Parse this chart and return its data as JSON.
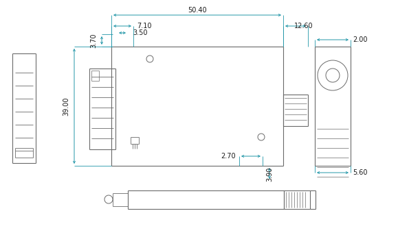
{
  "bg_color": "#ffffff",
  "line_color": "#6a6a6a",
  "dim_color": "#2196a8",
  "dim_text_color": "#1a1a1a",
  "fig_width": 5.79,
  "fig_height": 3.62,
  "dpi": 100,
  "dimensions": {
    "50.40": [
      291,
      18,
      7.5
    ],
    "7.10": [
      248,
      38,
      7.5
    ],
    "3.50": [
      252,
      48,
      7.5
    ],
    "12.60": [
      420,
      38,
      7.5
    ],
    "39.00": [
      100,
      155,
      7.5
    ],
    "3.70": [
      138,
      88,
      7.5
    ],
    "2.70": [
      352,
      228,
      7.5
    ],
    "3.90": [
      393,
      243,
      7.5
    ],
    "2.00": [
      532,
      72,
      7.5
    ],
    "5.60": [
      532,
      238,
      7.5
    ]
  }
}
